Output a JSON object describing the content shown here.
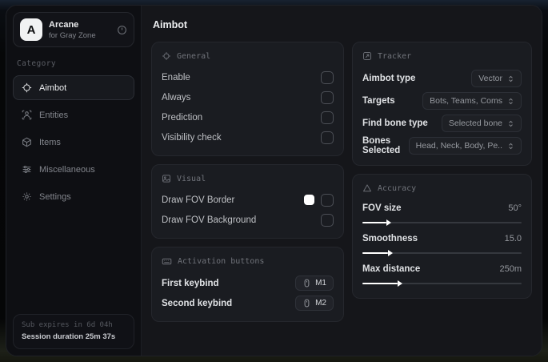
{
  "app": {
    "name": "Arcane",
    "subtitle": "for Gray Zone",
    "logo_letter": "A"
  },
  "sidebar": {
    "category_label": "Category",
    "items": [
      {
        "label": "Aimbot",
        "icon": "crosshair-icon",
        "selected": true
      },
      {
        "label": "Entities",
        "icon": "entities-icon",
        "selected": false
      },
      {
        "label": "Items",
        "icon": "items-icon",
        "selected": false
      },
      {
        "label": "Miscellaneous",
        "icon": "sliders-icon",
        "selected": false
      },
      {
        "label": "Settings",
        "icon": "gear-icon",
        "selected": false
      }
    ],
    "footer": {
      "sub_expires": "Sub expires in 6d 04h",
      "session_duration": "Session duration 25m 37s"
    }
  },
  "main": {
    "title": "Aimbot",
    "sections": {
      "general": {
        "title": "General",
        "rows": [
          {
            "label": "Enable",
            "checked": false
          },
          {
            "label": "Always",
            "checked": false
          },
          {
            "label": "Prediction",
            "checked": false
          },
          {
            "label": "Visibility check",
            "checked": false
          }
        ]
      },
      "visual": {
        "title": "Visual",
        "rows": [
          {
            "label": "Draw FOV Border",
            "swatch_color": "#ffffff",
            "checked": false
          },
          {
            "label": "Draw FOV Background",
            "checked": false
          }
        ]
      },
      "activation": {
        "title": "Activation buttons",
        "rows": [
          {
            "label": "First keybind",
            "key": "M1"
          },
          {
            "label": "Second keybind",
            "key": "M2"
          }
        ]
      },
      "tracker": {
        "title": "Tracker",
        "rows": [
          {
            "label": "Aimbot type",
            "value": "Vector"
          },
          {
            "label": "Targets",
            "value": "Bots, Teams, Coms"
          },
          {
            "label": "Find bone type",
            "value": "Selected bone"
          },
          {
            "label": "Bones Selected",
            "value": "Head, Neck, Body, Pe.."
          }
        ]
      },
      "accuracy": {
        "title": "Accuracy",
        "rows": [
          {
            "label": "FOV size",
            "value": "50°",
            "percent": 15
          },
          {
            "label": "Smoothness",
            "value": "15.0",
            "percent": 16
          },
          {
            "label": "Max distance",
            "value": "250m",
            "percent": 22
          }
        ]
      }
    }
  },
  "colors": {
    "accent": "#ffffff",
    "card_bg": "#1a1c21",
    "window_bg": "#121317"
  }
}
